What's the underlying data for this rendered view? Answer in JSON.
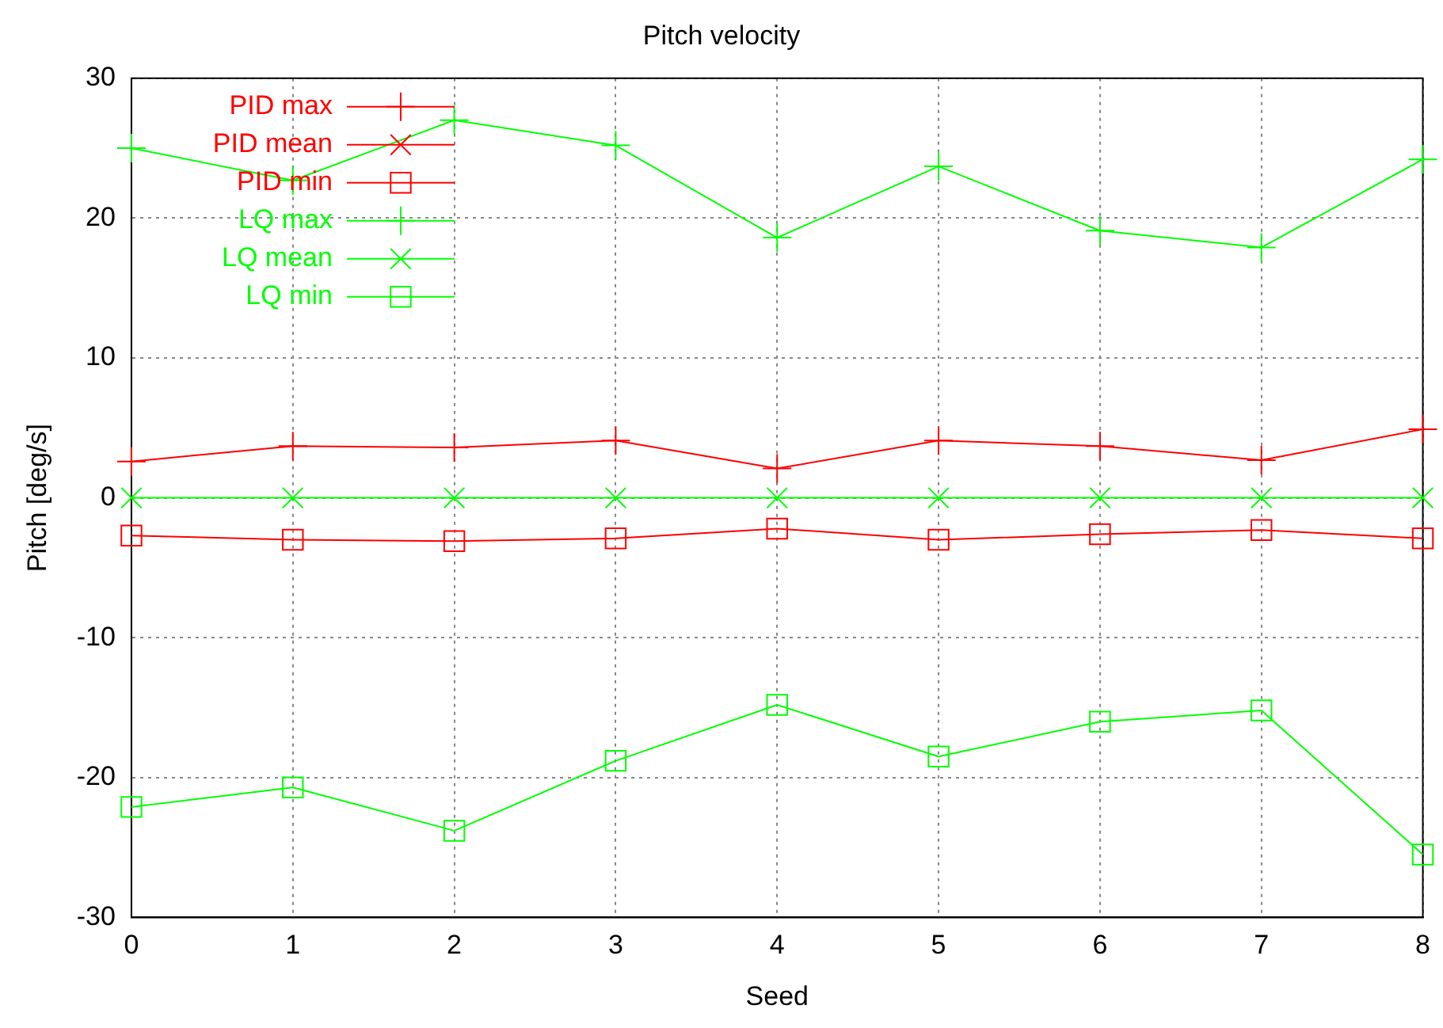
{
  "chart_data": {
    "type": "line",
    "title": "Pitch velocity",
    "xlabel": "Seed",
    "ylabel": "Pitch [deg/s]",
    "x": [
      0,
      1,
      2,
      3,
      4,
      5,
      6,
      7,
      8
    ],
    "xlim": [
      0,
      8
    ],
    "xticks": [
      0,
      1,
      2,
      3,
      4,
      5,
      6,
      7,
      8
    ],
    "ylim": [
      -30,
      30
    ],
    "yticks": [
      -30,
      -20,
      -10,
      0,
      10,
      20,
      30
    ],
    "grid": true,
    "legend": "top left",
    "line_style": "solid",
    "series": [
      {
        "name": "PID max",
        "color": "#ff0000",
        "marker": "plus",
        "values": [
          2.6,
          3.7,
          3.6,
          4.1,
          2.1,
          4.1,
          3.7,
          2.7,
          4.9
        ]
      },
      {
        "name": "PID mean",
        "color": "#ff0000",
        "marker": "cross",
        "values": [
          null,
          null,
          null,
          null,
          null,
          null,
          null,
          null,
          null
        ]
      },
      {
        "name": "PID min",
        "color": "#ff0000",
        "marker": "square",
        "values": [
          -2.7,
          -3.0,
          -3.1,
          -2.9,
          -2.2,
          -3.0,
          -2.6,
          -2.3,
          -2.9
        ]
      },
      {
        "name": "LQ max",
        "color": "#00ff00",
        "marker": "plus",
        "values": [
          25.0,
          22.7,
          27.0,
          25.2,
          18.6,
          23.7,
          19.1,
          17.9,
          24.2
        ]
      },
      {
        "name": "LQ mean",
        "color": "#00ff00",
        "marker": "cross",
        "values": [
          0,
          0,
          0,
          0,
          0,
          0,
          0,
          0,
          0
        ]
      },
      {
        "name": "LQ min",
        "color": "#00ff00",
        "marker": "square",
        "values": [
          -22.1,
          -20.7,
          -23.8,
          -18.8,
          -14.8,
          -18.5,
          -16.0,
          -15.2,
          -25.5
        ]
      }
    ]
  }
}
